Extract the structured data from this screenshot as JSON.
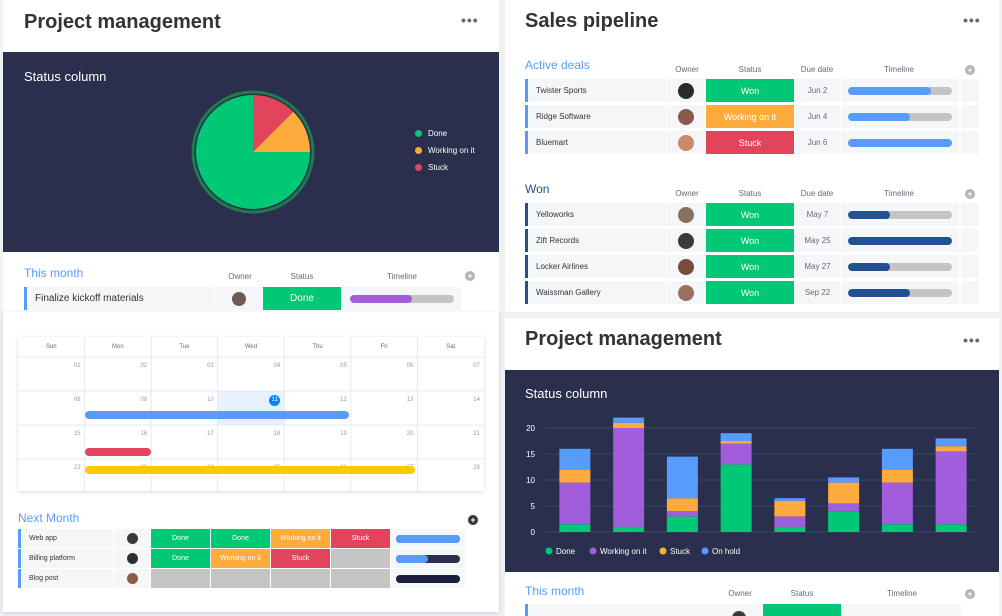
{
  "left_panel": {
    "title": "Project management",
    "pie_widget": {
      "title": "Status column",
      "legend": [
        {
          "label": "Done",
          "color": "#00c875"
        },
        {
          "label": "Working on it",
          "color": "#fdab3d"
        },
        {
          "label": "Stuck",
          "color": "#e2445c"
        }
      ]
    },
    "this_month": {
      "title": "This month",
      "columns": {
        "owner": "Owner",
        "status": "Status",
        "timeline": "Timeline"
      },
      "rows": [
        {
          "name": "Finalize kickoff materials",
          "status": "Done",
          "status_color": "#00c875",
          "timeline_fill": 0.6,
          "timeline_color": "#a25ddc"
        }
      ]
    },
    "calendar": {
      "days": [
        "Sun",
        "Mon",
        "Tue",
        "Wed",
        "Thu",
        "Fri",
        "Sat"
      ],
      "weeks": [
        [
          "01",
          "02",
          "03",
          "04",
          "05",
          "06",
          "07"
        ],
        [
          "08",
          "09",
          "10",
          "11",
          "12",
          "13",
          "14"
        ],
        [
          "15",
          "16",
          "17",
          "18",
          "19",
          "20",
          "21"
        ],
        [
          "22",
          "23",
          "24",
          "25",
          "26",
          "27",
          "28"
        ]
      ],
      "today": "11"
    },
    "next_month": {
      "title": "Next Month",
      "rows": [
        {
          "name": "Web app",
          "statuses": [
            {
              "label": "Done",
              "color": "#00c875"
            },
            {
              "label": "Done",
              "color": "#00c875"
            },
            {
              "label": "Working on it",
              "color": "#fdab3d"
            },
            {
              "label": "Stuck",
              "color": "#e2445c"
            }
          ],
          "timeline_fill": 1.0,
          "timeline_color": "#579bfc"
        },
        {
          "name": "Billing platform",
          "statuses": [
            {
              "label": "Done",
              "color": "#00c875"
            },
            {
              "label": "Working on it",
              "color": "#fdab3d"
            },
            {
              "label": "Stuck",
              "color": "#e2445c"
            },
            {
              "label": "",
              "color": "#c4c4c4"
            }
          ],
          "timeline_fill": 0.5,
          "timeline_color": "#579bfc"
        },
        {
          "name": "Blog post",
          "statuses": [
            {
              "label": "",
              "color": "#c4c4c4"
            },
            {
              "label": "",
              "color": "#c4c4c4"
            },
            {
              "label": "",
              "color": "#c4c4c4"
            },
            {
              "label": "",
              "color": "#c4c4c4"
            }
          ],
          "timeline_fill": 1.0,
          "timeline_color": "#1c1f3b"
        }
      ]
    }
  },
  "right_panel": {
    "title": "Sales pipeline",
    "groups": [
      {
        "title": "Active deals",
        "color": "#579bfc",
        "columns": {
          "owner": "Owner",
          "status": "Status",
          "due": "Due date",
          "timeline": "Timeline"
        },
        "rows": [
          {
            "name": "Twister Sports",
            "status": "Won",
            "status_color": "#00c875",
            "due": "Jun 2",
            "timeline_fill": 0.8,
            "timeline_color": "#579bfc"
          },
          {
            "name": "Ridge Software",
            "status": "Working on it",
            "status_color": "#fdab3d",
            "due": "Jun 4",
            "timeline_fill": 0.6,
            "timeline_color": "#579bfc"
          },
          {
            "name": "Bluemart",
            "status": "Stuck",
            "status_color": "#e2445c",
            "due": "Jun 6",
            "timeline_fill": 1.0,
            "timeline_color": "#579bfc"
          }
        ]
      },
      {
        "title": "Won",
        "color": "#225091",
        "columns": {
          "owner": "Owner",
          "status": "Status",
          "due": "Due date",
          "timeline": "Timeline"
        },
        "rows": [
          {
            "name": "Yelloworks",
            "status": "Won",
            "status_color": "#00c875",
            "due": "May 7",
            "timeline_fill": 0.4,
            "timeline_color": "#225091"
          },
          {
            "name": "Zift Records",
            "status": "Won",
            "status_color": "#00c875",
            "due": "May 25",
            "timeline_fill": 1.0,
            "timeline_color": "#225091"
          },
          {
            "name": "Locker Airlines",
            "status": "Won",
            "status_color": "#00c875",
            "due": "May 27",
            "timeline_fill": 0.4,
            "timeline_color": "#225091"
          },
          {
            "name": "Waissman Gallery",
            "status": "Won",
            "status_color": "#00c875",
            "due": "Sep 22",
            "timeline_fill": 0.6,
            "timeline_color": "#225091"
          }
        ]
      }
    ]
  },
  "right_lower": {
    "title": "Project management",
    "bar_widget": {
      "title": "Status column"
    },
    "this_month": {
      "title": "This month",
      "columns": {
        "owner": "Owner",
        "status": "Status",
        "timeline": "Timeline"
      }
    }
  },
  "chart_data": [
    {
      "type": "pie",
      "title": "Status column",
      "labels": [
        "Done",
        "Working on it",
        "Stuck"
      ],
      "values": [
        75,
        12.5,
        12.5
      ],
      "colors": [
        "#00c875",
        "#fdab3d",
        "#e2445c"
      ],
      "legend": "right"
    },
    {
      "type": "bar",
      "stacked": true,
      "title": "Status column",
      "categories": [
        "1",
        "2",
        "3",
        "4",
        "5",
        "6",
        "7",
        "8"
      ],
      "ylim": [
        0,
        22
      ],
      "yticks": [
        0,
        5,
        10,
        15,
        20
      ],
      "grid": true,
      "legend": "bottom",
      "series": [
        {
          "name": "Done",
          "color": "#00c875",
          "values": [
            1.5,
            1,
            3,
            13,
            1,
            4,
            1.5,
            1.5
          ]
        },
        {
          "name": "Working on it",
          "color": "#a25ddc",
          "values": [
            8,
            19,
            1,
            4,
            2,
            1.5,
            8,
            14
          ]
        },
        {
          "name": "Stuck",
          "color": "#fdab3d",
          "values": [
            2.5,
            1,
            2.5,
            0.5,
            3,
            4,
            2.5,
            1
          ]
        },
        {
          "name": "On hold",
          "color": "#579bfc",
          "values": [
            4,
            1,
            8,
            1.5,
            0.5,
            1,
            4,
            1.5
          ]
        }
      ]
    }
  ]
}
